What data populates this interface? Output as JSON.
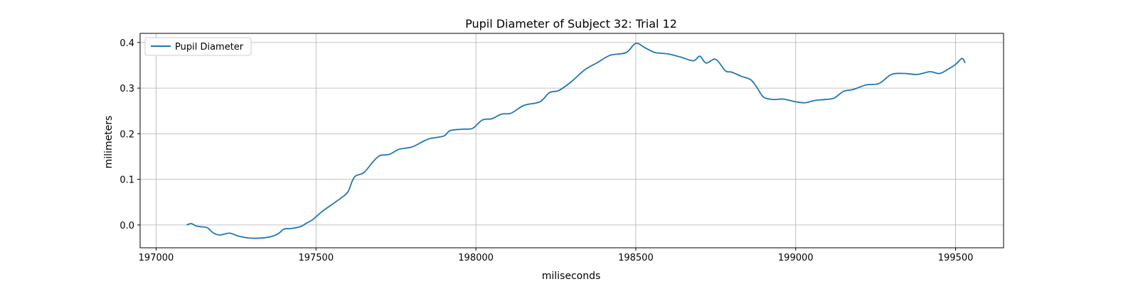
{
  "chart_data": {
    "type": "line",
    "title": "Pupil Diameter of Subject 32: Trial 12",
    "xlabel": "miliseconds",
    "ylabel": "milimeters",
    "xlim": [
      196950,
      199650
    ],
    "ylim": [
      -0.05,
      0.42
    ],
    "xticks": [
      197000,
      197500,
      198000,
      198500,
      199000,
      199500
    ],
    "yticks": [
      0.0,
      0.1,
      0.2,
      0.3,
      0.4
    ],
    "ytick_labels": [
      "0.0",
      "0.1",
      "0.2",
      "0.3",
      "0.4"
    ],
    "grid": true,
    "legend": "top-left",
    "series": [
      {
        "name": "Pupil Diameter",
        "color": "#1f77b4",
        "x": [
          197095,
          197110,
          197125,
          197140,
          197160,
          197180,
          197200,
          197230,
          197260,
          197300,
          197350,
          197380,
          197400,
          197420,
          197450,
          197470,
          197490,
          197520,
          197550,
          197580,
          197600,
          197620,
          197650,
          197680,
          197700,
          197730,
          197760,
          197800,
          197840,
          197860,
          197900,
          197920,
          197960,
          197990,
          198020,
          198050,
          198080,
          198110,
          198150,
          198200,
          198230,
          198260,
          198300,
          198340,
          198380,
          198420,
          198470,
          198500,
          198530,
          198560,
          198600,
          198640,
          198680,
          198700,
          198720,
          198750,
          198780,
          198800,
          198830,
          198860,
          198880,
          198900,
          198930,
          198960,
          199000,
          199030,
          199060,
          199090,
          199120,
          199150,
          199180,
          199220,
          199260,
          199300,
          199340,
          199380,
          199420,
          199450,
          199480,
          199500,
          199520,
          199530
        ],
        "values": [
          0.0,
          0.003,
          -0.002,
          -0.004,
          -0.006,
          -0.018,
          -0.022,
          -0.018,
          -0.025,
          -0.029,
          -0.027,
          -0.02,
          -0.009,
          -0.008,
          -0.004,
          0.004,
          0.012,
          0.03,
          0.045,
          0.06,
          0.073,
          0.105,
          0.115,
          0.14,
          0.152,
          0.155,
          0.166,
          0.171,
          0.185,
          0.19,
          0.195,
          0.207,
          0.21,
          0.212,
          0.23,
          0.233,
          0.243,
          0.245,
          0.262,
          0.27,
          0.29,
          0.295,
          0.315,
          0.34,
          0.356,
          0.372,
          0.378,
          0.398,
          0.388,
          0.378,
          0.375,
          0.368,
          0.36,
          0.37,
          0.355,
          0.363,
          0.338,
          0.335,
          0.326,
          0.318,
          0.3,
          0.28,
          0.275,
          0.276,
          0.27,
          0.268,
          0.273,
          0.275,
          0.278,
          0.293,
          0.297,
          0.307,
          0.31,
          0.33,
          0.332,
          0.33,
          0.336,
          0.332,
          0.343,
          0.352,
          0.365,
          0.355
        ]
      }
    ]
  }
}
